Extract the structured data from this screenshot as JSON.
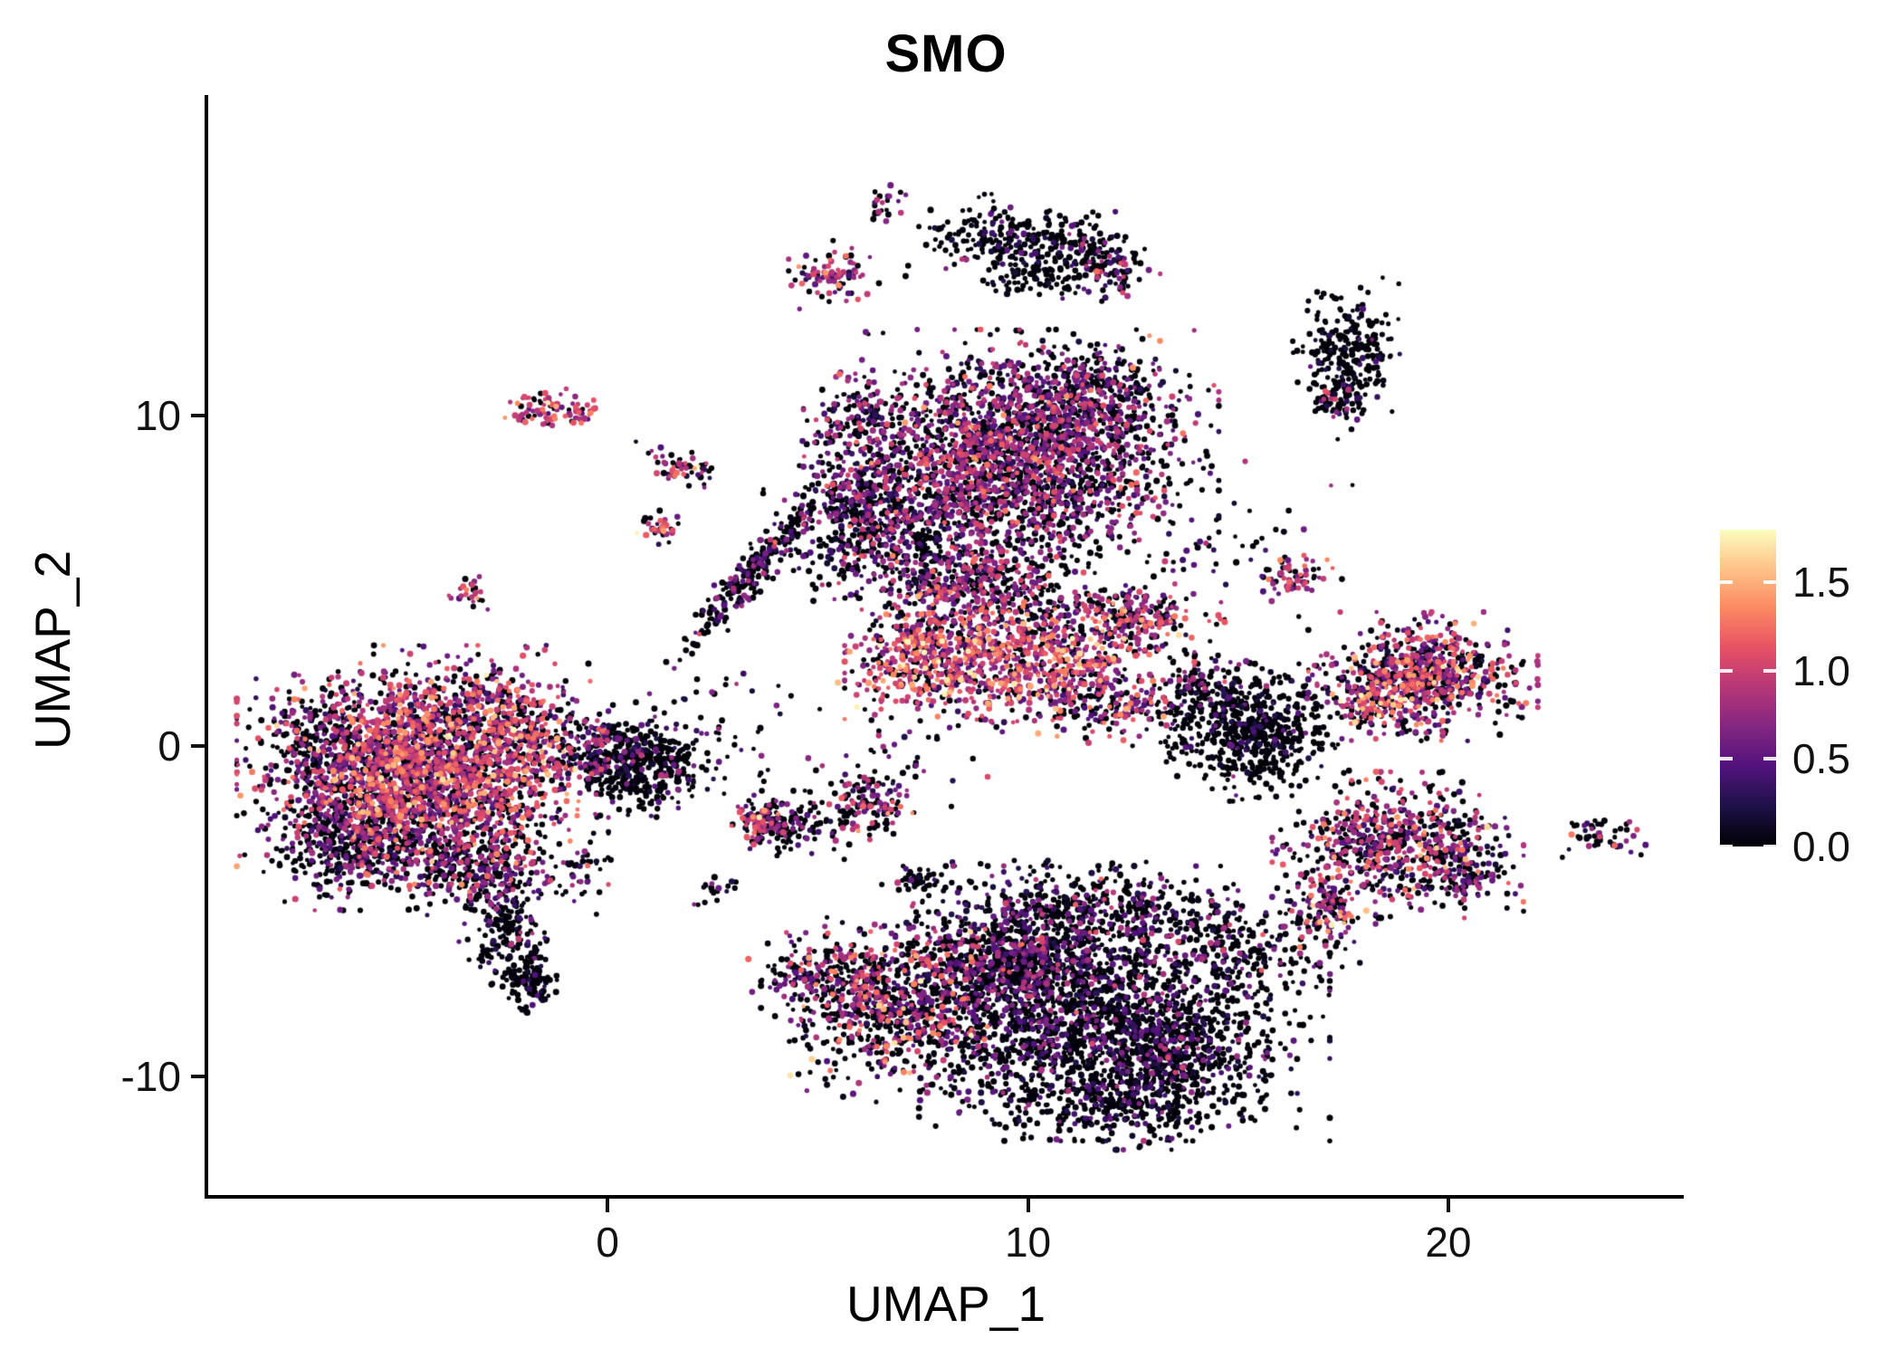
{
  "title": "SMO",
  "axes": {
    "xlabel": "UMAP_1",
    "ylabel": "UMAP_2",
    "x_tick_labels": [
      "0",
      "10",
      "20"
    ],
    "y_tick_labels": [
      "-10",
      "0",
      "10"
    ]
  },
  "legend": {
    "tick_labels": [
      "1.5",
      "1.0",
      "0.5",
      "0.0"
    ],
    "tick_values": [
      1.5,
      1.0,
      0.5,
      0.0
    ],
    "vmin": 0.0,
    "vmax": 1.8
  },
  "colors": {
    "background": "#ffffff",
    "axis": "#000000",
    "text": "#111111",
    "colormap_name": "magma",
    "magma_stops": [
      [
        0.0,
        "#000004"
      ],
      [
        0.125,
        "#1d1147"
      ],
      [
        0.25,
        "#51127c"
      ],
      [
        0.375,
        "#822681"
      ],
      [
        0.5,
        "#b63679"
      ],
      [
        0.625,
        "#e65164"
      ],
      [
        0.75,
        "#fb8861"
      ],
      [
        0.875,
        "#fec287"
      ],
      [
        1.0,
        "#fcfdbf"
      ]
    ]
  },
  "chart_data": {
    "type": "scatter",
    "title": "SMO",
    "xlabel": "UMAP_1",
    "ylabel": "UMAP_2",
    "xlim": [
      -9.5,
      25.6
    ],
    "ylim": [
      -13.6,
      19.7
    ],
    "x_ticks": [
      0,
      10,
      20
    ],
    "y_ticks": [
      -10,
      0,
      10
    ],
    "grid": false,
    "legend_position": "right",
    "color_scale": {
      "vmin": 0.0,
      "vmax": 1.8,
      "ticks": [
        0.0,
        0.5,
        1.0,
        1.5
      ],
      "colormap": "magma"
    },
    "seed": 42,
    "clusters": [
      {
        "name": "left-main",
        "n": 2600,
        "x": -4.4,
        "y": -0.6,
        "sx": 1.7,
        "sy": 1.4,
        "p0": 0.33,
        "m": 0.85,
        "s": 0.35
      },
      {
        "name": "left-lower-left",
        "n": 450,
        "x": -5.9,
        "y": -2.9,
        "sx": 0.9,
        "sy": 0.8,
        "p0": 0.65,
        "m": 0.5,
        "s": 0.3
      },
      {
        "name": "left-lower-lobe",
        "n": 320,
        "x": -3.3,
        "y": -3.5,
        "sx": 0.8,
        "sy": 0.7,
        "p0": 0.5,
        "m": 0.7,
        "s": 0.3
      },
      {
        "name": "left-tail",
        "n": 200,
        "x": -2.5,
        "y": -5.5,
        "sx": 0.45,
        "sy": 0.9,
        "p0": 0.8,
        "m": 0.4,
        "s": 0.25
      },
      {
        "name": "left-tail-tip",
        "n": 110,
        "x": -1.9,
        "y": -7.0,
        "sx": 0.3,
        "sy": 0.5,
        "p0": 0.85,
        "m": 0.3,
        "s": 0.2
      },
      {
        "name": "left-right-edge",
        "n": 220,
        "x": -2.1,
        "y": 0.4,
        "sx": 0.6,
        "sy": 0.8,
        "p0": 0.35,
        "m": 0.95,
        "s": 0.35
      },
      {
        "name": "left-left-edge",
        "n": 160,
        "x": -6.9,
        "y": -0.1,
        "sx": 0.7,
        "sy": 0.9,
        "p0": 0.6,
        "m": 0.5,
        "s": 0.3
      },
      {
        "name": "sat-pink-a",
        "n": 70,
        "x": -1.5,
        "y": 10.2,
        "sx": 0.45,
        "sy": 0.28,
        "p0": 0.25,
        "m": 1.0,
        "s": 0.3
      },
      {
        "name": "sat-pink-b",
        "n": 22,
        "x": -0.55,
        "y": 10.1,
        "sx": 0.18,
        "sy": 0.14,
        "p0": 0.3,
        "m": 0.9,
        "s": 0.3
      },
      {
        "name": "sat-streak",
        "n": 60,
        "x": 1.8,
        "y": 8.5,
        "sx": 0.5,
        "sy": 0.22,
        "rot": -0.35,
        "p0": 0.4,
        "m": 0.9,
        "s": 0.35
      },
      {
        "name": "sat-tiny-orange",
        "n": 34,
        "x": 1.25,
        "y": 6.6,
        "sx": 0.22,
        "sy": 0.3,
        "p0": 0.35,
        "m": 1.0,
        "s": 0.4
      },
      {
        "name": "sat-tiny-purple",
        "n": 28,
        "x": -3.3,
        "y": 4.6,
        "sx": 0.26,
        "sy": 0.24,
        "p0": 0.4,
        "m": 0.8,
        "s": 0.3
      },
      {
        "name": "sat-below-origin",
        "n": 40,
        "x": -0.65,
        "y": -3.8,
        "sx": 0.28,
        "sy": 0.5,
        "p0": 0.6,
        "m": 0.6,
        "s": 0.3
      },
      {
        "name": "center-black",
        "n": 430,
        "x": 0.7,
        "y": -0.6,
        "sx": 0.75,
        "sy": 0.6,
        "p0": 0.8,
        "m": 0.35,
        "s": 0.25
      },
      {
        "name": "center-specks",
        "n": 90,
        "x": -0.1,
        "y": 0.2,
        "sx": 0.5,
        "sy": 0.4,
        "p0": 0.55,
        "m": 0.6,
        "s": 0.3
      },
      {
        "name": "bridge-diagonal",
        "n": 240,
        "x": 3.4,
        "y": 5.2,
        "sx": 0.2,
        "sy": 1.3,
        "rot": -0.6,
        "p0": 0.6,
        "m": 0.5,
        "s": 0.3
      },
      {
        "name": "top-main",
        "n": 2300,
        "x": 9.6,
        "y": 8.7,
        "sx": 1.9,
        "sy": 1.5,
        "p0": 0.45,
        "m": 0.65,
        "s": 0.3
      },
      {
        "name": "top-left-lobe",
        "n": 550,
        "x": 6.3,
        "y": 7.0,
        "sx": 1.0,
        "sy": 1.0,
        "p0": 0.58,
        "m": 0.5,
        "s": 0.3
      },
      {
        "name": "top-upper-right",
        "n": 320,
        "x": 11.5,
        "y": 10.7,
        "sx": 0.9,
        "sy": 0.7,
        "p0": 0.5,
        "m": 0.6,
        "s": 0.3
      },
      {
        "name": "top-bottom-scatter",
        "n": 300,
        "x": 8.0,
        "y": 5.3,
        "sx": 1.2,
        "sy": 0.8,
        "p0": 0.55,
        "m": 0.6,
        "s": 0.3
      },
      {
        "name": "top-below-sparse",
        "n": 200,
        "x": 9.8,
        "y": 4.5,
        "sx": 1.1,
        "sy": 0.9,
        "p0": 0.5,
        "m": 0.7,
        "s": 0.35
      },
      {
        "name": "top-knob",
        "n": 120,
        "x": 6.0,
        "y": 9.9,
        "sx": 0.5,
        "sy": 0.55,
        "p0": 0.5,
        "m": 0.6,
        "s": 0.3
      },
      {
        "name": "tiny-topmost",
        "n": 24,
        "x": 6.6,
        "y": 16.3,
        "sx": 0.2,
        "sy": 0.28,
        "p0": 0.5,
        "m": 0.7,
        "s": 0.3
      },
      {
        "name": "small-purple-top",
        "n": 90,
        "x": 5.4,
        "y": 14.2,
        "sx": 0.42,
        "sy": 0.42,
        "p0": 0.3,
        "m": 0.75,
        "s": 0.3
      },
      {
        "name": "arc-left",
        "n": 190,
        "x": 9.3,
        "y": 15.4,
        "sx": 0.85,
        "sy": 0.5,
        "p0": 0.78,
        "m": 0.3,
        "s": 0.25
      },
      {
        "name": "arc-right",
        "n": 150,
        "x": 11.0,
        "y": 15.0,
        "sx": 0.8,
        "sy": 0.45,
        "p0": 0.75,
        "m": 0.35,
        "s": 0.25
      },
      {
        "name": "arc-tip-pink",
        "n": 80,
        "x": 12.0,
        "y": 14.5,
        "sx": 0.45,
        "sy": 0.4,
        "p0": 0.55,
        "m": 0.6,
        "s": 0.35
      },
      {
        "name": "arc-under",
        "n": 60,
        "x": 10.2,
        "y": 14.1,
        "sx": 0.6,
        "sy": 0.3,
        "p0": 0.85,
        "m": 0.25,
        "s": 0.2
      },
      {
        "name": "farright-top-black",
        "n": 280,
        "x": 17.6,
        "y": 11.7,
        "sx": 0.5,
        "sy": 0.95,
        "p0": 0.88,
        "m": 0.2,
        "s": 0.2
      },
      {
        "name": "farright-top-pink",
        "n": 36,
        "x": 17.4,
        "y": 10.4,
        "sx": 0.3,
        "sy": 0.3,
        "p0": 0.45,
        "m": 0.8,
        "s": 0.35
      },
      {
        "name": "band-main",
        "n": 850,
        "x": 9.8,
        "y": 2.5,
        "sx": 1.6,
        "sy": 0.85,
        "p0": 0.25,
        "m": 0.95,
        "s": 0.35
      },
      {
        "name": "band-left",
        "n": 260,
        "x": 7.3,
        "y": 2.8,
        "sx": 0.7,
        "sy": 0.75,
        "p0": 0.25,
        "m": 1.0,
        "s": 0.35
      },
      {
        "name": "band-arm",
        "n": 210,
        "x": 12.6,
        "y": 3.9,
        "sx": 0.8,
        "sy": 0.45,
        "p0": 0.35,
        "m": 0.8,
        "s": 0.3
      },
      {
        "name": "band-low",
        "n": 160,
        "x": 11.8,
        "y": 1.3,
        "sx": 0.9,
        "sy": 0.5,
        "p0": 0.45,
        "m": 0.7,
        "s": 0.3
      },
      {
        "name": "band-above",
        "n": 90,
        "x": 8.6,
        "y": 4.8,
        "sx": 0.7,
        "sy": 0.45,
        "p0": 0.4,
        "m": 0.8,
        "s": 0.3
      },
      {
        "name": "midleft-black",
        "n": 150,
        "x": 4.2,
        "y": -2.4,
        "sx": 0.55,
        "sy": 0.4,
        "p0": 0.65,
        "m": 0.5,
        "s": 0.3
      },
      {
        "name": "midleft-pink-edge",
        "n": 48,
        "x": 3.5,
        "y": -2.3,
        "sx": 0.24,
        "sy": 0.3,
        "p0": 0.25,
        "m": 1.0,
        "s": 0.35
      },
      {
        "name": "midleft-purple",
        "n": 140,
        "x": 6.2,
        "y": -1.8,
        "sx": 0.42,
        "sy": 0.46,
        "p0": 0.45,
        "m": 0.7,
        "s": 0.3
      },
      {
        "name": "midleft-tiny-black",
        "n": 40,
        "x": 7.5,
        "y": -4.1,
        "sx": 0.28,
        "sy": 0.22,
        "p0": 0.85,
        "m": 0.25,
        "s": 0.2
      },
      {
        "name": "bottom-main",
        "n": 2200,
        "x": 11.2,
        "y": -7.8,
        "sx": 2.3,
        "sy": 1.6,
        "p0": 0.7,
        "m": 0.4,
        "s": 0.25
      },
      {
        "name": "bottom-left-pink",
        "n": 650,
        "x": 6.9,
        "y": -7.9,
        "sx": 1.25,
        "sy": 1.0,
        "p0": 0.45,
        "m": 0.8,
        "s": 0.4
      },
      {
        "name": "bottom-purple",
        "n": 480,
        "x": 9.4,
        "y": -6.3,
        "sx": 1.1,
        "sy": 0.85,
        "p0": 0.5,
        "m": 0.6,
        "s": 0.3
      },
      {
        "name": "bottom-right",
        "n": 380,
        "x": 13.4,
        "y": -9.3,
        "sx": 1.1,
        "sy": 0.85,
        "p0": 0.75,
        "m": 0.35,
        "s": 0.25
      },
      {
        "name": "bottom-edge",
        "n": 330,
        "x": 12.0,
        "y": -10.8,
        "sx": 1.4,
        "sy": 0.55,
        "p0": 0.8,
        "m": 0.3,
        "s": 0.22
      },
      {
        "name": "bottom-top-edge",
        "n": 300,
        "x": 11.5,
        "y": -4.9,
        "sx": 1.6,
        "sy": 0.55,
        "p0": 0.62,
        "m": 0.5,
        "s": 0.3
      },
      {
        "name": "bottom-left-tip",
        "n": 190,
        "x": 5.3,
        "y": -6.9,
        "sx": 0.75,
        "sy": 0.55,
        "p0": 0.5,
        "m": 0.65,
        "s": 0.35
      },
      {
        "name": "bottom-right-up",
        "n": 120,
        "x": 14.8,
        "y": -6.0,
        "sx": 0.65,
        "sy": 0.65,
        "p0": 0.7,
        "m": 0.4,
        "s": 0.3
      },
      {
        "name": "rightmid-black",
        "n": 620,
        "x": 15.4,
        "y": 0.4,
        "sx": 0.95,
        "sy": 0.8,
        "p0": 0.84,
        "m": 0.25,
        "s": 0.2
      },
      {
        "name": "rightmid-specks",
        "n": 80,
        "x": 14.4,
        "y": 1.6,
        "sx": 0.5,
        "sy": 0.4,
        "p0": 0.6,
        "m": 0.5,
        "s": 0.3
      },
      {
        "name": "small-above-rightmid",
        "n": 66,
        "x": 16.3,
        "y": 5.1,
        "sx": 0.45,
        "sy": 0.28,
        "p0": 0.3,
        "m": 0.85,
        "s": 0.3
      },
      {
        "name": "right-pink",
        "n": 760,
        "x": 19.4,
        "y": 2.1,
        "sx": 1.05,
        "sy": 0.75,
        "p0": 0.38,
        "m": 0.8,
        "s": 0.35
      },
      {
        "name": "right-pink-orange",
        "n": 110,
        "x": 18.1,
        "y": 1.2,
        "sx": 0.45,
        "sy": 0.38,
        "p0": 0.28,
        "m": 1.0,
        "s": 0.4
      },
      {
        "name": "rightlow-purple",
        "n": 680,
        "x": 18.8,
        "y": -3.0,
        "sx": 1.15,
        "sy": 0.85,
        "p0": 0.45,
        "m": 0.75,
        "s": 0.35
      },
      {
        "name": "rightlow-tail",
        "n": 140,
        "x": 17.1,
        "y": -4.8,
        "sx": 0.45,
        "sy": 0.55,
        "p0": 0.38,
        "m": 0.85,
        "s": 0.4
      },
      {
        "name": "rightlow-right",
        "n": 80,
        "x": 20.6,
        "y": -4.0,
        "sx": 0.45,
        "sy": 0.38,
        "p0": 0.6,
        "m": 0.5,
        "s": 0.3
      },
      {
        "name": "farright-tiny",
        "n": 48,
        "x": 23.6,
        "y": -2.7,
        "sx": 0.42,
        "sy": 0.26,
        "p0": 0.65,
        "m": 0.5,
        "s": 0.35
      },
      {
        "name": "stray-origin-right",
        "n": 55,
        "x": 2.6,
        "y": 0.4,
        "sx": 1.4,
        "sy": 1.1,
        "p0": 0.75,
        "m": 0.4,
        "s": 0.3
      },
      {
        "name": "stray-upper-right",
        "n": 48,
        "x": 14.6,
        "y": 6.3,
        "sx": 1.2,
        "sy": 0.95,
        "p0": 0.7,
        "m": 0.5,
        "s": 0.3
      },
      {
        "name": "stray-right-low",
        "n": 40,
        "x": 16.0,
        "y": -6.3,
        "sx": 0.85,
        "sy": 0.6,
        "p0": 0.6,
        "m": 0.5,
        "s": 0.3
      },
      {
        "name": "stray-mid-gap",
        "n": 48,
        "x": 13.9,
        "y": 1.8,
        "sx": 0.55,
        "sy": 0.85,
        "p0": 0.6,
        "m": 0.5,
        "s": 0.3
      },
      {
        "name": "stray-center-gap",
        "n": 40,
        "x": 7.2,
        "y": -0.2,
        "sx": 0.9,
        "sy": 0.7,
        "p0": 0.6,
        "m": 0.5,
        "s": 0.3
      },
      {
        "name": "stray-small-lowleft",
        "n": 20,
        "x": 2.6,
        "y": -4.4,
        "sx": 0.4,
        "sy": 0.25,
        "p0": 0.6,
        "m": 0.5,
        "s": 0.3
      }
    ]
  }
}
